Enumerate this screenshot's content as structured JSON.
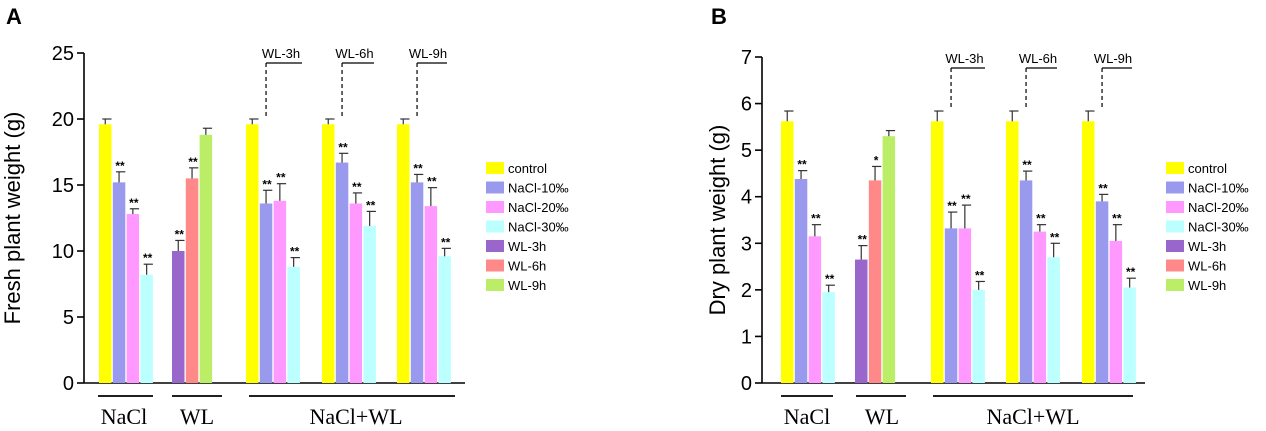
{
  "colors": {
    "control": "#ffff00",
    "NaCl-10‰": "#9999ee",
    "NaCl-20‰": "#ff99ff",
    "NaCl-30‰": "#bbffff",
    "WL-3h": "#9966cc",
    "WL-6h": "#ff8888",
    "WL-9h": "#bbee66"
  },
  "legend": {
    "entries": [
      "control",
      "NaCl-10‰",
      "NaCl-20‰",
      "NaCl-30‰",
      "WL-3h",
      "WL-6h",
      "WL-9h"
    ]
  },
  "chart_data": [
    {
      "panel_label": "A",
      "type": "bar",
      "ylabel": "Fresh plant weight (g)",
      "ylim": [
        0,
        25
      ],
      "yticks": [
        0,
        5,
        10,
        15,
        20,
        25
      ],
      "group_labels": [
        "NaCl",
        "WL",
        "NaCl+WL"
      ],
      "wl_marks": [
        "WL-3h",
        "WL-6h",
        "WL-9h"
      ],
      "clusters": [
        {
          "bars": [
            {
              "series": "control",
              "value": 19.6,
              "err": 0.4,
              "sig": ""
            },
            {
              "series": "NaCl-10‰",
              "value": 15.2,
              "err": 0.8,
              "sig": "**"
            },
            {
              "series": "NaCl-20‰",
              "value": 12.8,
              "err": 0.4,
              "sig": "**"
            },
            {
              "series": "NaCl-30‰",
              "value": 8.2,
              "err": 0.8,
              "sig": "**"
            }
          ]
        },
        {
          "bars": [
            {
              "series": "WL-3h",
              "value": 10.0,
              "err": 0.8,
              "sig": "**"
            },
            {
              "series": "WL-6h",
              "value": 15.5,
              "err": 0.8,
              "sig": "**"
            },
            {
              "series": "WL-9h",
              "value": 18.8,
              "err": 0.5,
              "sig": ""
            }
          ]
        },
        {
          "bars": [
            {
              "series": "control",
              "value": 19.6,
              "err": 0.4,
              "sig": ""
            },
            {
              "series": "NaCl-10‰",
              "value": 13.6,
              "err": 1.0,
              "sig": "**"
            },
            {
              "series": "NaCl-20‰",
              "value": 13.8,
              "err": 1.3,
              "sig": "**"
            },
            {
              "series": "NaCl-30‰",
              "value": 8.8,
              "err": 0.7,
              "sig": "**"
            }
          ]
        },
        {
          "bars": [
            {
              "series": "control",
              "value": 19.6,
              "err": 0.4,
              "sig": ""
            },
            {
              "series": "NaCl-10‰",
              "value": 16.7,
              "err": 0.7,
              "sig": "**"
            },
            {
              "series": "NaCl-20‰",
              "value": 13.6,
              "err": 0.8,
              "sig": "**"
            },
            {
              "series": "NaCl-30‰",
              "value": 11.9,
              "err": 1.1,
              "sig": "**"
            }
          ]
        },
        {
          "bars": [
            {
              "series": "control",
              "value": 19.6,
              "err": 0.4,
              "sig": ""
            },
            {
              "series": "NaCl-10‰",
              "value": 15.2,
              "err": 0.6,
              "sig": "**"
            },
            {
              "series": "NaCl-20‰",
              "value": 13.4,
              "err": 1.4,
              "sig": "**"
            },
            {
              "series": "NaCl-30‰",
              "value": 9.6,
              "err": 0.6,
              "sig": "**"
            }
          ]
        }
      ]
    },
    {
      "panel_label": "B",
      "type": "bar",
      "ylabel": "Dry plant weight (g)",
      "ylim": [
        0,
        7
      ],
      "yticks": [
        0,
        1,
        2,
        3,
        4,
        5,
        6,
        7
      ],
      "group_labels": [
        "NaCl",
        "WL",
        "NaCl+WL"
      ],
      "wl_marks": [
        "WL-3h",
        "WL-6h",
        "WL-9h"
      ],
      "clusters": [
        {
          "bars": [
            {
              "series": "control",
              "value": 5.62,
              "err": 0.22,
              "sig": ""
            },
            {
              "series": "NaCl-10‰",
              "value": 4.38,
              "err": 0.18,
              "sig": "**"
            },
            {
              "series": "NaCl-20‰",
              "value": 3.15,
              "err": 0.25,
              "sig": "**"
            },
            {
              "series": "NaCl-30‰",
              "value": 1.95,
              "err": 0.15,
              "sig": "**"
            }
          ]
        },
        {
          "bars": [
            {
              "series": "WL-3h",
              "value": 2.65,
              "err": 0.3,
              "sig": "**"
            },
            {
              "series": "WL-6h",
              "value": 4.35,
              "err": 0.3,
              "sig": "*"
            },
            {
              "series": "WL-9h",
              "value": 5.3,
              "err": 0.12,
              "sig": ""
            }
          ]
        },
        {
          "bars": [
            {
              "series": "control",
              "value": 5.62,
              "err": 0.22,
              "sig": ""
            },
            {
              "series": "NaCl-10‰",
              "value": 3.32,
              "err": 0.35,
              "sig": "**"
            },
            {
              "series": "NaCl-20‰",
              "value": 3.32,
              "err": 0.5,
              "sig": "**"
            },
            {
              "series": "NaCl-30‰",
              "value": 2.0,
              "err": 0.18,
              "sig": "**"
            }
          ]
        },
        {
          "bars": [
            {
              "series": "control",
              "value": 5.62,
              "err": 0.22,
              "sig": ""
            },
            {
              "series": "NaCl-10‰",
              "value": 4.35,
              "err": 0.2,
              "sig": "**"
            },
            {
              "series": "NaCl-20‰",
              "value": 3.25,
              "err": 0.15,
              "sig": "**"
            },
            {
              "series": "NaCl-30‰",
              "value": 2.7,
              "err": 0.3,
              "sig": "**"
            }
          ]
        },
        {
          "bars": [
            {
              "series": "control",
              "value": 5.62,
              "err": 0.22,
              "sig": ""
            },
            {
              "series": "NaCl-10‰",
              "value": 3.9,
              "err": 0.15,
              "sig": "**"
            },
            {
              "series": "NaCl-20‰",
              "value": 3.05,
              "err": 0.35,
              "sig": "**"
            },
            {
              "series": "NaCl-30‰",
              "value": 2.05,
              "err": 0.2,
              "sig": "**"
            }
          ]
        }
      ]
    }
  ]
}
